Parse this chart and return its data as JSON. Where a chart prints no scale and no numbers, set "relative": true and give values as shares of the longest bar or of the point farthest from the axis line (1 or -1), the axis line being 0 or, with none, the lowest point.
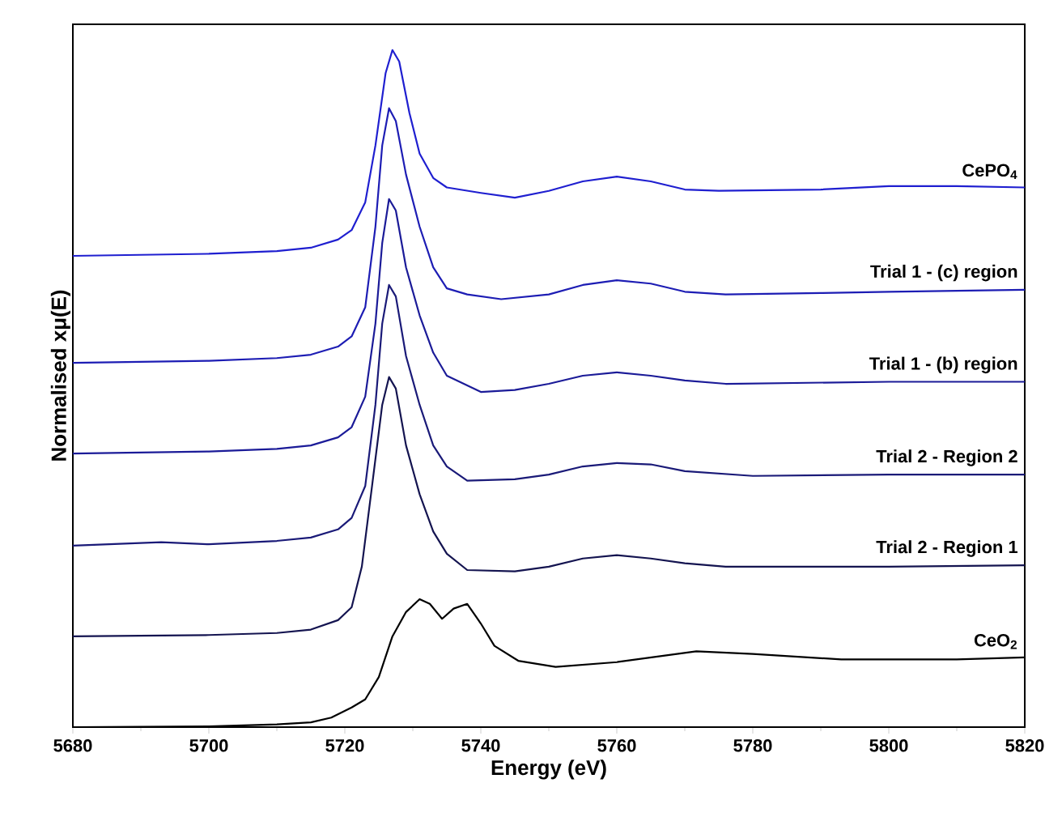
{
  "chart_data": {
    "type": "line",
    "xlabel": "Energy (eV)",
    "ylabel": "Normalised xμ(E)",
    "relative": true,
    "xlim": [
      5680,
      5820
    ],
    "xticks": [
      5680,
      5700,
      5720,
      5740,
      5760,
      5780,
      5800,
      5820
    ],
    "series": [
      {
        "name": "CePO$_{4}$",
        "color": "#1f1fd0",
        "x": [
          5680,
          5700,
          5710,
          5715,
          5719,
          5721,
          5723,
          5724.5,
          5726,
          5727,
          5728,
          5729.5,
          5731,
          5733,
          5735,
          5740,
          5745,
          5750,
          5755,
          5760,
          5765,
          5770,
          5775,
          5790,
          5800,
          5810,
          5820
        ],
        "values": [
          0.696,
          0.699,
          0.703,
          0.708,
          0.72,
          0.734,
          0.775,
          0.859,
          0.966,
          1.0,
          0.983,
          0.907,
          0.847,
          0.811,
          0.797,
          0.789,
          0.782,
          0.792,
          0.806,
          0.813,
          0.806,
          0.794,
          0.792,
          0.794,
          0.799,
          0.799,
          0.797
        ]
      },
      {
        "name": "Trial 1 - (c) region",
        "color": "#1d1db4",
        "x": [
          5680,
          5700,
          5710,
          5715,
          5719,
          5721,
          5723,
          5724.5,
          5725.5,
          5726.5,
          5727.5,
          5729,
          5731,
          5733,
          5735,
          5738,
          5743,
          5750,
          5755,
          5760,
          5765,
          5770,
          5776,
          5790,
          5800,
          5820
        ],
        "values": [
          0.538,
          0.541,
          0.545,
          0.55,
          0.562,
          0.577,
          0.62,
          0.739,
          0.859,
          0.914,
          0.895,
          0.816,
          0.739,
          0.679,
          0.648,
          0.639,
          0.632,
          0.639,
          0.653,
          0.66,
          0.655,
          0.643,
          0.639,
          0.641,
          0.643,
          0.646
        ]
      },
      {
        "name": "Trial 1 - (b) region",
        "color": "#1b1b98",
        "x": [
          5680,
          5700,
          5710,
          5715,
          5719,
          5721,
          5723,
          5724.5,
          5725.5,
          5726.5,
          5727.5,
          5729,
          5731,
          5733,
          5735,
          5740,
          5745,
          5750,
          5755,
          5760,
          5765,
          5770,
          5776,
          5800,
          5820
        ],
        "values": [
          0.404,
          0.407,
          0.411,
          0.416,
          0.428,
          0.443,
          0.488,
          0.596,
          0.715,
          0.78,
          0.763,
          0.679,
          0.608,
          0.553,
          0.519,
          0.495,
          0.498,
          0.507,
          0.519,
          0.524,
          0.519,
          0.512,
          0.507,
          0.51,
          0.51
        ]
      },
      {
        "name": "Trial 2 - Region 2",
        "color": "#1a1a78",
        "x": [
          5680,
          5693,
          5700,
          5710,
          5715,
          5719,
          5721,
          5723,
          5724.5,
          5725.5,
          5726.5,
          5727.5,
          5729,
          5731,
          5733,
          5735,
          5738,
          5745,
          5750,
          5755,
          5760,
          5765,
          5770,
          5780,
          5800,
          5820
        ],
        "values": [
          0.268,
          0.273,
          0.27,
          0.275,
          0.28,
          0.292,
          0.309,
          0.356,
          0.476,
          0.596,
          0.653,
          0.636,
          0.548,
          0.476,
          0.416,
          0.385,
          0.364,
          0.366,
          0.373,
          0.385,
          0.39,
          0.388,
          0.378,
          0.371,
          0.373,
          0.373
        ]
      },
      {
        "name": "Trial 2 - Region 1",
        "color": "#141450",
        "x": [
          5680,
          5700,
          5710,
          5715,
          5719,
          5721,
          5722.5,
          5724,
          5725.5,
          5726.5,
          5727.5,
          5729,
          5731,
          5733,
          5735,
          5738,
          5745,
          5750,
          5755,
          5760,
          5765,
          5770,
          5776,
          5800,
          5820
        ],
        "values": [
          0.134,
          0.136,
          0.139,
          0.144,
          0.158,
          0.177,
          0.237,
          0.356,
          0.476,
          0.517,
          0.5,
          0.416,
          0.344,
          0.289,
          0.256,
          0.232,
          0.23,
          0.237,
          0.249,
          0.254,
          0.249,
          0.242,
          0.237,
          0.237,
          0.239
        ]
      },
      {
        "name": "CeO$_{2}$",
        "color": "#000000",
        "x": [
          5680,
          5700,
          5710,
          5715,
          5718,
          5721,
          5723,
          5725,
          5727,
          5729,
          5731,
          5732.5,
          5734.3,
          5736,
          5738,
          5740,
          5742,
          5745.5,
          5751,
          5760,
          5771.7,
          5780,
          5793,
          5810,
          5820
        ],
        "values": [
          0.0,
          0.001,
          0.004,
          0.007,
          0.014,
          0.029,
          0.041,
          0.074,
          0.134,
          0.17,
          0.189,
          0.182,
          0.16,
          0.175,
          0.182,
          0.153,
          0.12,
          0.098,
          0.089,
          0.096,
          0.112,
          0.108,
          0.1,
          0.1,
          0.103
        ]
      }
    ]
  }
}
